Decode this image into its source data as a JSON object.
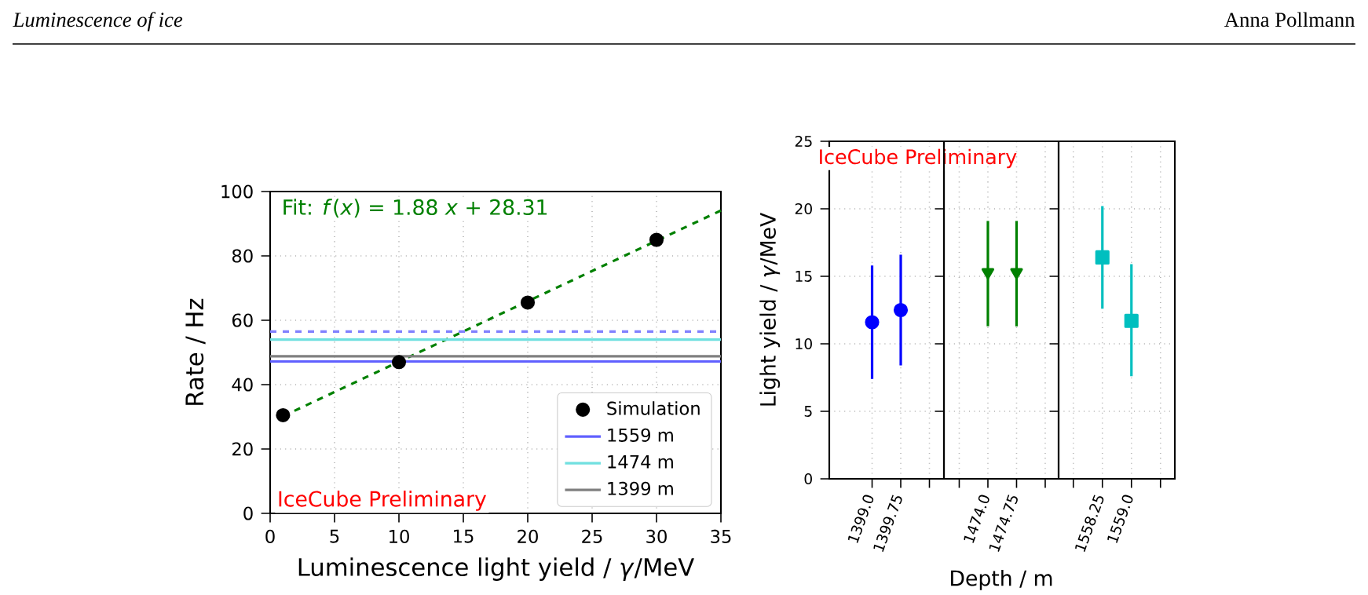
{
  "chart_data": [
    {
      "type": "other",
      "title": "Luminescence of ice",
      "annotations": [
        "Anna Pollmann"
      ]
    },
    {
      "type": "scatter",
      "xlabel": "Luminescence light yield / *γ*/MeV",
      "ylabel": "Rate / Hz",
      "xlim": [
        0,
        35
      ],
      "xticks": [
        0,
        5,
        10,
        15,
        20,
        25,
        30,
        35
      ],
      "ylim": [
        0,
        100
      ],
      "yticks": [
        0,
        20,
        40,
        60,
        80,
        100
      ],
      "grid": true,
      "legend": "bottom right",
      "marker": "circle",
      "annotations": [
        "Fit: *f*(*x*) = 1.88 *x* + 28.31",
        "IceCube Preliminary"
      ],
      "series": [
        {
          "name": "Simulation",
          "type": "scatter",
          "color": "#000000",
          "x": [
            1,
            10,
            20,
            30
          ],
          "values": [
            30.5,
            47,
            65.5,
            85
          ]
        },
        {
          "type": "line",
          "marker": "none",
          "line_style": "dashed",
          "color": "#008000",
          "x": [
            1,
            35
          ],
          "values": [
            30.2,
            94.1
          ]
        },
        {
          "name": "1559 m",
          "type": "line",
          "marker": "none",
          "color": "#6060ff",
          "x": [
            0,
            35
          ],
          "values": [
            47.2,
            47.2
          ]
        },
        {
          "type": "line",
          "marker": "none",
          "line_style": "dashed",
          "color": "#8080ff",
          "x": [
            0,
            35
          ],
          "values": [
            56.5,
            56.5
          ]
        },
        {
          "name": "1474 m",
          "type": "line",
          "marker": "none",
          "color": "#70e0e0",
          "x": [
            0,
            35
          ],
          "values": [
            54,
            54
          ]
        },
        {
          "name": "1399 m",
          "type": "line",
          "marker": "none",
          "color": "#808080",
          "x": [
            0,
            35
          ],
          "values": [
            48.8,
            48.8
          ]
        }
      ]
    },
    {
      "type": "scatter",
      "ylabel": "Light yield / *γ*/MeV",
      "marker": "circle",
      "grid": true,
      "xlim": [
        1397.88,
        1400.88
      ],
      "xticks": [
        {
          "value": 1399.0,
          "label": "1399.0"
        },
        {
          "value": 1399.75,
          "label": "1399.75"
        },
        {
          "value": 1400.5,
          "label": null
        }
      ],
      "ylim": [
        0,
        25
      ],
      "yticks": [
        0,
        5,
        10,
        15,
        20,
        25
      ],
      "annotations": [
        "IceCube Preliminary"
      ],
      "x": [
        1399.0,
        1399.75
      ],
      "series": [
        {
          "color": "#0000ff",
          "values": [
            11.6,
            12.5
          ],
          "errors": [
            [
              7.4,
              15.8
            ],
            [
              8.4,
              16.6
            ]
          ]
        }
      ]
    },
    {
      "type": "scatter",
      "xlabel": "Depth / m",
      "marker": "triangle",
      "grid": true,
      "tick_labels": "x",
      "xlim": [
        1472.85,
        1475.85
      ],
      "xticks": [
        {
          "value": 1473.25,
          "label": null
        },
        {
          "value": 1474.0,
          "label": "1474.0"
        },
        {
          "value": 1474.75,
          "label": "1474.75"
        },
        {
          "value": 1475.5,
          "label": null
        }
      ],
      "ylim": [
        0,
        25
      ],
      "yticks": [
        0,
        5,
        10,
        15,
        20,
        25
      ],
      "x": [
        1474.0,
        1474.75
      ],
      "series": [
        {
          "color": "#008000",
          "values": [
            15.3,
            15.3
          ],
          "errors": [
            [
              11.3,
              19.1
            ],
            [
              11.3,
              19.1
            ]
          ]
        }
      ]
    },
    {
      "type": "scatter",
      "marker": "square",
      "grid": true,
      "tick_labels": "x",
      "xlim": [
        1557.12,
        1560.12
      ],
      "xticks": [
        {
          "value": 1557.5,
          "label": null
        },
        {
          "value": 1558.25,
          "label": "1558.25"
        },
        {
          "value": 1559.0,
          "label": "1559.0"
        },
        {
          "value": 1559.75,
          "label": null
        }
      ],
      "ylim": [
        0,
        25
      ],
      "yticks": [
        0,
        5,
        10,
        15,
        20,
        25
      ],
      "x": [
        1558.25,
        1559.0
      ],
      "series": [
        {
          "color": "#00bfbf",
          "values": [
            16.4,
            11.7
          ],
          "errors": [
            [
              12.6,
              20.2
            ],
            [
              7.6,
              15.9
            ]
          ]
        }
      ]
    }
  ]
}
